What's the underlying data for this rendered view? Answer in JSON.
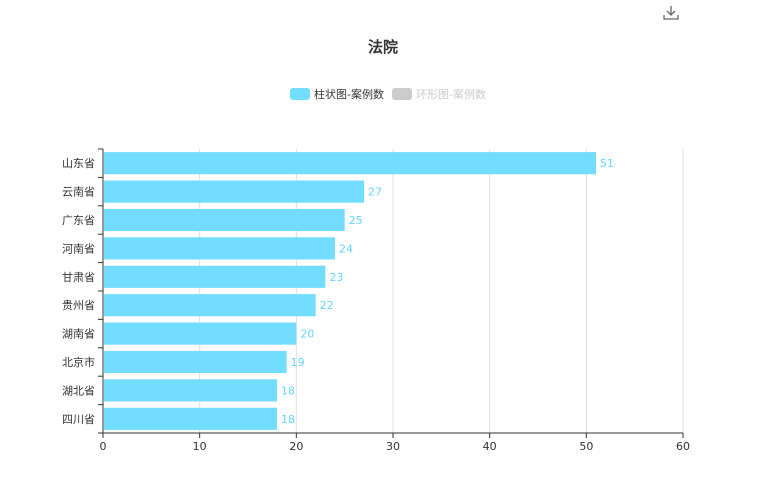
{
  "chart_data": {
    "type": "bar",
    "orientation": "horizontal",
    "title": "法院",
    "categories": [
      "山东省",
      "云南省",
      "广东省",
      "河南省",
      "甘肃省",
      "贵州省",
      "湖南省",
      "北京市",
      "湖北省",
      "四川省"
    ],
    "series": [
      {
        "name": "柱状图-案例数",
        "values": [
          51,
          27,
          25,
          24,
          23,
          22,
          20,
          19,
          18,
          18
        ],
        "color": "#72ddff",
        "active": true
      },
      {
        "name": "环形图-案例数",
        "color": "#cccccc",
        "active": false
      }
    ],
    "xlim": [
      0,
      60
    ],
    "xticks": [
      0,
      10,
      20,
      30,
      40,
      50,
      60
    ],
    "grid": true,
    "legend_position": "top-center"
  },
  "toolbar": {
    "download_icon": "download-icon"
  }
}
